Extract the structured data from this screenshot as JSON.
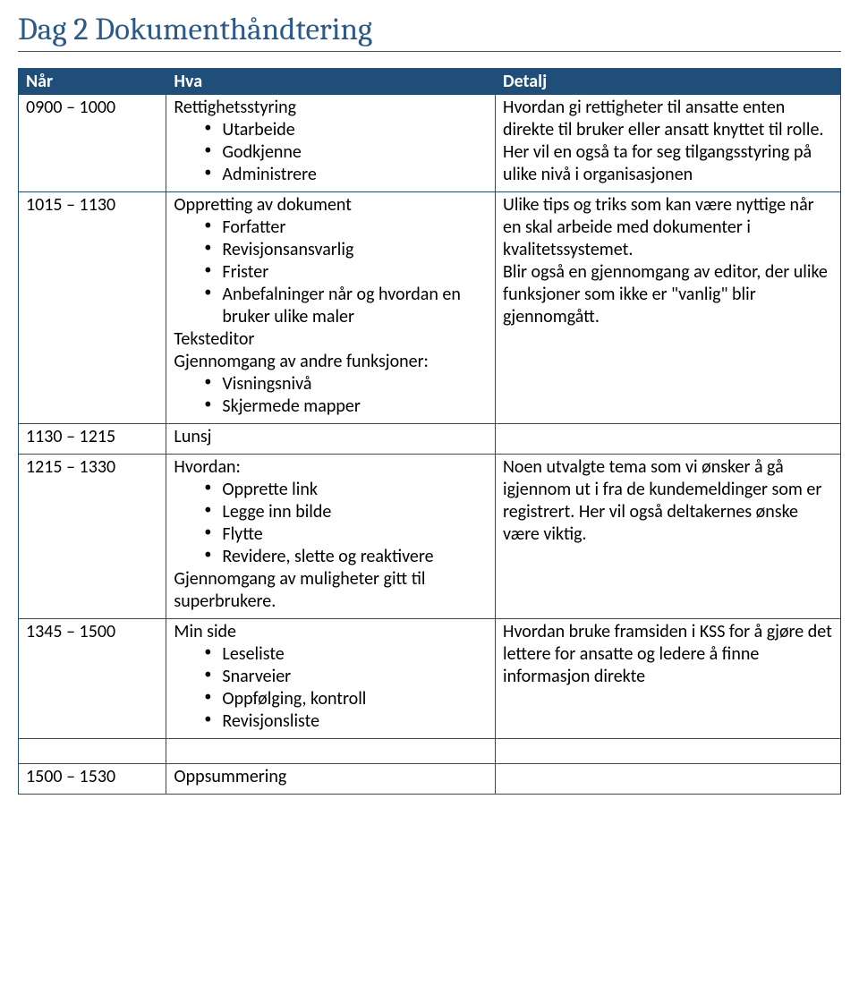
{
  "title": "Dag 2 Dokumenthåndtering",
  "columns": {
    "naar": "Når",
    "hva": "Hva",
    "detalj": "Detalj"
  },
  "rows": [
    {
      "naar": "0900 – 1000",
      "hva": {
        "lead1": "Rettighetsstyring",
        "bullets1": [
          "Utarbeide",
          "Godkjenne",
          "Administrere"
        ]
      },
      "detalj": "Hvordan gi rettigheter til ansatte enten direkte til bruker eller ansatt knyttet til rolle. Her vil en også ta for seg tilgangsstyring på ulike nivå i organisasjonen"
    },
    {
      "naar": "1015 – 1130",
      "hva": {
        "lead1": "Oppretting av dokument",
        "bullets1": [
          "Forfatter",
          "Revisjonsansvarlig",
          "Frister",
          "Anbefalninger når og hvordan en bruker ulike maler"
        ],
        "lead2": "Teksteditor",
        "lead3": "Gjennomgang av andre funksjoner:",
        "bullets2": [
          "Visningsnivå",
          "Skjermede mapper"
        ]
      },
      "detalj": "Ulike tips og triks som kan være nyttige når en skal arbeide med dokumenter i kvalitetssystemet.\nBlir også en gjennomgang av editor, der ulike funksjoner som ikke er \"vanlig\" blir gjennomgått."
    },
    {
      "naar": "1130 – 1215",
      "hva": {
        "lead1": "Lunsj"
      },
      "detalj": ""
    },
    {
      "naar": "1215 – 1330",
      "hva": {
        "lead1": "Hvordan:",
        "bullets1": [
          "Opprette link",
          "Legge inn bilde",
          "Flytte",
          "Revidere, slette og reaktivere"
        ],
        "lead2": "Gjennomgang av muligheter gitt til superbrukere."
      },
      "detalj": "Noen utvalgte tema som vi ønsker å gå igjennom ut i fra de kundemeldinger som er registrert. Her vil også deltakernes ønske være viktig."
    },
    {
      "naar": "1345 – 1500",
      "hva": {
        "lead1": "Min side",
        "bullets1": [
          "Leseliste",
          "Snarveier",
          "Oppfølging, kontroll",
          "Revisjonsliste"
        ]
      },
      "detalj": "Hvordan bruke framsiden i KSS for å gjøre det lettere for ansatte og ledere å finne informasjon direkte"
    },
    {
      "naar": "1500 – 1530",
      "hva": {
        "lead1": "Oppsummering"
      },
      "detalj": ""
    }
  ],
  "style": {
    "title_color": "#2b5a8a",
    "header_bg": "#1f4e79",
    "header_fg": "#ffffff",
    "border_color": "#1f4e79",
    "body_font": "Calibri",
    "title_font": "Cambria",
    "title_fontsize": 35,
    "body_fontsize": 20
  }
}
